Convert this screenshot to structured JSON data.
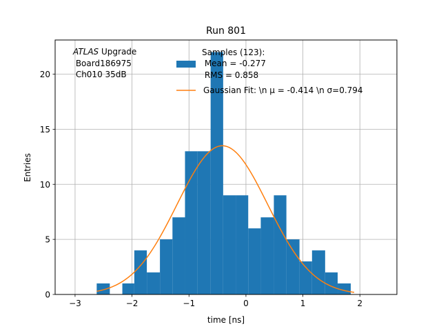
{
  "chart_data": {
    "type": "bar",
    "title": "Run 801",
    "xlabel": "time [ns]",
    "ylabel": "Entries",
    "xlim": [
      -3.35,
      2.65
    ],
    "ylim": [
      0,
      23.1
    ],
    "xticks": [
      -3,
      -2,
      -1,
      0,
      1,
      2
    ],
    "xtick_labels": [
      "−3",
      "−2",
      "−1",
      "0",
      "1",
      "2"
    ],
    "yticks": [
      0,
      5,
      10,
      15,
      20
    ],
    "ytick_labels": [
      "0",
      "5",
      "10",
      "15",
      "20"
    ],
    "grid": true,
    "atlas_label": {
      "italic": "ATLAS",
      "suffix": " Upgrade",
      "line2": " Board186975",
      "line3": " Ch010 35dB"
    },
    "legend": {
      "placement": "top-right",
      "hist_line1": "Samples (123):",
      "hist_line2": " Mean = -0.277",
      "hist_line3": " RMS = 0.858",
      "fit_label": "Gaussian Fit: \\n μ = -0.414 \\n σ=0.794"
    },
    "histogram": {
      "color": "#1f77b4",
      "bin_edges": [
        -2.62,
        -2.39,
        -2.17,
        -1.96,
        -1.74,
        -1.51,
        -1.29,
        -1.07,
        -0.85,
        -0.62,
        -0.4,
        -0.18,
        0.04,
        0.26,
        0.49,
        0.71,
        0.94,
        1.16,
        1.39,
        1.61,
        1.84,
        2.06
      ],
      "counts": [
        1,
        0,
        1,
        4,
        2,
        5,
        7,
        13,
        13,
        22,
        9,
        9,
        6,
        7,
        9,
        5,
        3,
        4,
        2,
        1,
        0
      ]
    },
    "gaussian_fit": {
      "color": "#ff7f0e",
      "mu": -0.414,
      "sigma": 0.794,
      "amplitude": 13.5,
      "x_range": [
        -2.62,
        1.9
      ]
    }
  }
}
